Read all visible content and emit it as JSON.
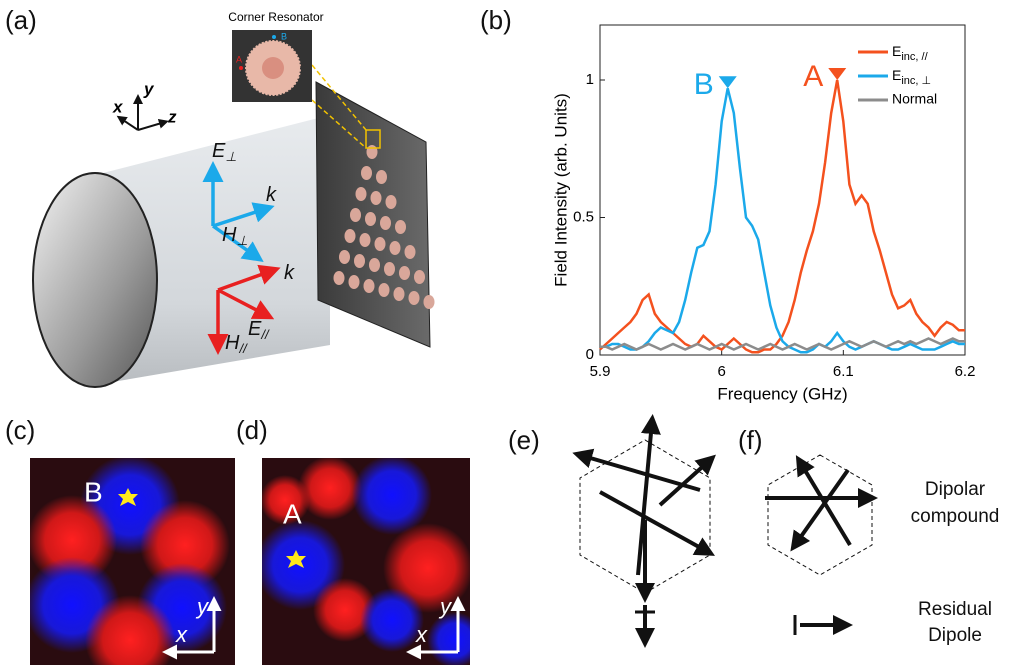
{
  "panel_labels": [
    "(a)",
    "(b)",
    "(c)",
    "(d)",
    "(e)",
    "(f)"
  ],
  "panel_a": {
    "inset_title": "Corner Resonator",
    "inset_labels": [
      "B",
      "A"
    ],
    "axes": [
      "x",
      "y",
      "z"
    ],
    "vectors": [
      {
        "main": "E",
        "sub": "⊥"
      },
      {
        "main": "k",
        "sub": ""
      },
      {
        "main": "H",
        "sub": "⊥"
      },
      {
        "main": "k",
        "sub": ""
      },
      {
        "main": "E",
        "sub": "//"
      },
      {
        "main": "H",
        "sub": "//"
      }
    ]
  },
  "panel_c": {
    "label": "B",
    "axes": [
      "x",
      "y"
    ]
  },
  "panel_d": {
    "label": "A",
    "axes": [
      "x",
      "y"
    ]
  },
  "panel_f": {
    "compound": [
      "Dipolar",
      "compound"
    ],
    "residual": [
      "Residual",
      "Dipole"
    ]
  },
  "chart_data": {
    "type": "line",
    "xlabel": "Frequency (GHz)",
    "ylabel": "Field Intensity (arb. Units)",
    "xlim": [
      5.9,
      6.2
    ],
    "xticks": [
      5.9,
      6,
      6.1,
      6.2
    ],
    "ylim": [
      0,
      1.2
    ],
    "yticks": [
      0,
      0.5,
      1
    ],
    "x": [
      5.9,
      5.905,
      5.91,
      5.915,
      5.92,
      5.925,
      5.93,
      5.935,
      5.94,
      5.945,
      5.95,
      5.955,
      5.96,
      5.965,
      5.97,
      5.975,
      5.98,
      5.985,
      5.99,
      5.995,
      6.0,
      6.005,
      6.01,
      6.015,
      6.02,
      6.025,
      6.03,
      6.035,
      6.04,
      6.045,
      6.05,
      6.055,
      6.06,
      6.065,
      6.07,
      6.075,
      6.08,
      6.085,
      6.09,
      6.095,
      6.1,
      6.105,
      6.11,
      6.115,
      6.12,
      6.125,
      6.13,
      6.135,
      6.14,
      6.145,
      6.15,
      6.155,
      6.16,
      6.165,
      6.17,
      6.175,
      6.18,
      6.185,
      6.19,
      6.195,
      6.2
    ],
    "series": [
      {
        "name": "Einc, //",
        "color": "#f4511e",
        "values": [
          0.02,
          0.04,
          0.06,
          0.08,
          0.1,
          0.12,
          0.15,
          0.2,
          0.22,
          0.15,
          0.12,
          0.1,
          0.08,
          0.06,
          0.04,
          0.03,
          0.04,
          0.07,
          0.05,
          0.03,
          0.02,
          0.04,
          0.06,
          0.04,
          0.02,
          0.01,
          0.01,
          0.02,
          0.02,
          0.04,
          0.07,
          0.12,
          0.2,
          0.3,
          0.38,
          0.45,
          0.55,
          0.7,
          0.88,
          1.0,
          0.85,
          0.62,
          0.55,
          0.58,
          0.55,
          0.45,
          0.38,
          0.3,
          0.22,
          0.17,
          0.18,
          0.2,
          0.15,
          0.12,
          0.1,
          0.07,
          0.1,
          0.12,
          0.11,
          0.09,
          0.09
        ]
      },
      {
        "name": "Einc, ⊥",
        "color": "#1ba9ea",
        "values": [
          0.03,
          0.03,
          0.04,
          0.04,
          0.03,
          0.02,
          0.02,
          0.03,
          0.05,
          0.08,
          0.1,
          0.09,
          0.08,
          0.12,
          0.2,
          0.3,
          0.39,
          0.4,
          0.45,
          0.62,
          0.85,
          0.97,
          0.88,
          0.68,
          0.5,
          0.47,
          0.42,
          0.3,
          0.18,
          0.1,
          0.05,
          0.03,
          0.02,
          0.01,
          0.01,
          0.02,
          0.04,
          0.03,
          0.05,
          0.08,
          0.05,
          0.03,
          0.02,
          0.03,
          0.04,
          0.05,
          0.04,
          0.03,
          0.02,
          0.02,
          0.03,
          0.04,
          0.03,
          0.02,
          0.02,
          0.02,
          0.03,
          0.04,
          0.05,
          0.04,
          0.04
        ]
      },
      {
        "name": "Normal",
        "color": "#8c8c8c",
        "values": [
          0.03,
          0.03,
          0.02,
          0.03,
          0.04,
          0.03,
          0.02,
          0.03,
          0.04,
          0.03,
          0.02,
          0.03,
          0.04,
          0.03,
          0.02,
          0.03,
          0.04,
          0.03,
          0.02,
          0.03,
          0.04,
          0.03,
          0.02,
          0.03,
          0.04,
          0.03,
          0.02,
          0.03,
          0.04,
          0.03,
          0.02,
          0.03,
          0.04,
          0.03,
          0.02,
          0.03,
          0.04,
          0.03,
          0.02,
          0.03,
          0.04,
          0.05,
          0.04,
          0.03,
          0.04,
          0.05,
          0.04,
          0.03,
          0.04,
          0.05,
          0.04,
          0.05,
          0.04,
          0.05,
          0.06,
          0.05,
          0.04,
          0.05,
          0.06,
          0.05,
          0.05
        ]
      }
    ],
    "annotations": [
      {
        "text": "B",
        "x": 6.005,
        "y": 0.97,
        "color": "#1ba9ea"
      },
      {
        "text": "A",
        "x": 6.095,
        "y": 1.0,
        "color": "#f4511e"
      }
    ]
  }
}
